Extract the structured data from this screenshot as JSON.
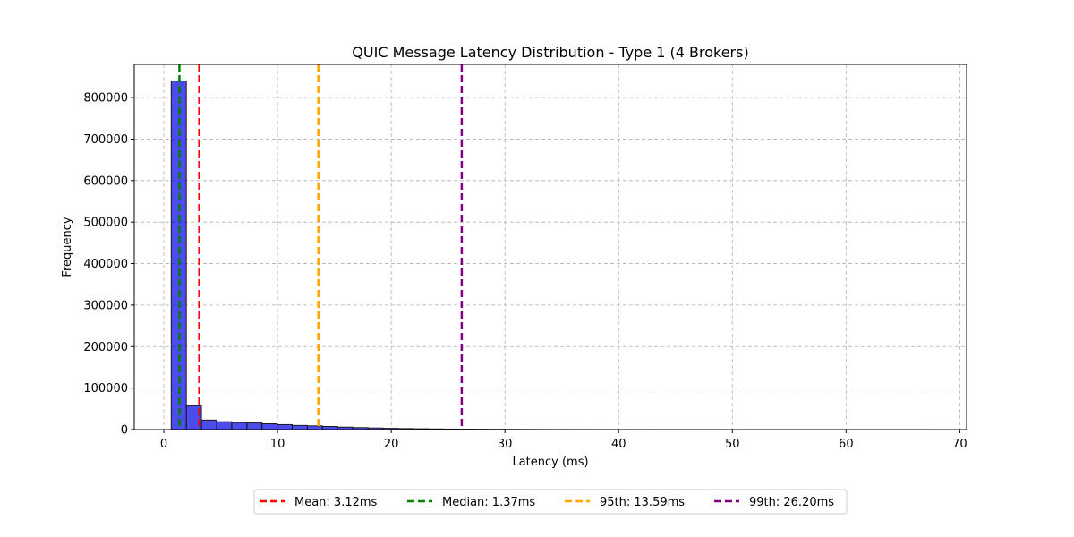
{
  "chart_data": {
    "type": "bar",
    "title": "QUIC Message Latency Distribution - Type 1 (4 Brokers)",
    "xlabel": "Latency (ms)",
    "ylabel": "Frequency",
    "xlim": [
      -2.6,
      70.6
    ],
    "ylim": [
      0,
      880000
    ],
    "xticks": [
      0,
      10,
      20,
      30,
      40,
      50,
      60,
      70
    ],
    "yticks": [
      0,
      100000,
      200000,
      300000,
      400000,
      500000,
      600000,
      700000,
      800000
    ],
    "grid": true,
    "legend_position": "bottom-center",
    "bar_color": "#0000e6",
    "bar_edge_color": "#1a1a1a",
    "bin_width": 1.33,
    "bin_start": 0.65,
    "bins": [
      [
        0.65,
        840000
      ],
      [
        1.98,
        57000
      ],
      [
        3.31,
        23000
      ],
      [
        4.64,
        19000
      ],
      [
        5.97,
        17000
      ],
      [
        7.3,
        16000
      ],
      [
        8.63,
        14000
      ],
      [
        9.96,
        12000
      ],
      [
        11.29,
        10000
      ],
      [
        12.62,
        9000
      ],
      [
        13.95,
        7500
      ],
      [
        15.28,
        6000
      ],
      [
        16.61,
        4800
      ],
      [
        17.94,
        3800
      ],
      [
        19.27,
        3000
      ],
      [
        20.6,
        2400
      ],
      [
        21.93,
        1900
      ],
      [
        23.26,
        1500
      ],
      [
        24.59,
        1200
      ],
      [
        25.92,
        1000
      ],
      [
        27.25,
        800
      ],
      [
        28.58,
        650
      ],
      [
        29.91,
        500
      ],
      [
        31.24,
        350
      ],
      [
        32.57,
        250
      ],
      [
        33.9,
        200
      ],
      [
        35.23,
        150
      ],
      [
        36.56,
        120
      ],
      [
        37.89,
        100
      ],
      [
        39.22,
        80
      ],
      [
        40.55,
        60
      ],
      [
        41.88,
        50
      ],
      [
        43.21,
        40
      ],
      [
        44.54,
        35
      ],
      [
        45.87,
        30
      ],
      [
        47.2,
        25
      ],
      [
        48.53,
        20
      ],
      [
        49.86,
        18
      ],
      [
        51.19,
        15
      ],
      [
        52.52,
        12
      ],
      [
        53.85,
        10
      ],
      [
        55.18,
        8
      ],
      [
        56.51,
        7
      ],
      [
        57.84,
        6
      ],
      [
        59.17,
        5
      ],
      [
        60.5,
        4
      ],
      [
        61.83,
        3
      ],
      [
        63.16,
        3
      ],
      [
        64.49,
        2
      ],
      [
        65.82,
        2
      ]
    ],
    "reference_lines": [
      {
        "name": "Mean: 3.12ms",
        "x": 3.12,
        "color": "#ff0000"
      },
      {
        "name": "Median: 1.37ms",
        "x": 1.37,
        "color": "#008000"
      },
      {
        "name": "95th: 13.59ms",
        "x": 13.59,
        "color": "#ffa500"
      },
      {
        "name": "99th: 26.20ms",
        "x": 26.2,
        "color": "#800080"
      }
    ]
  }
}
